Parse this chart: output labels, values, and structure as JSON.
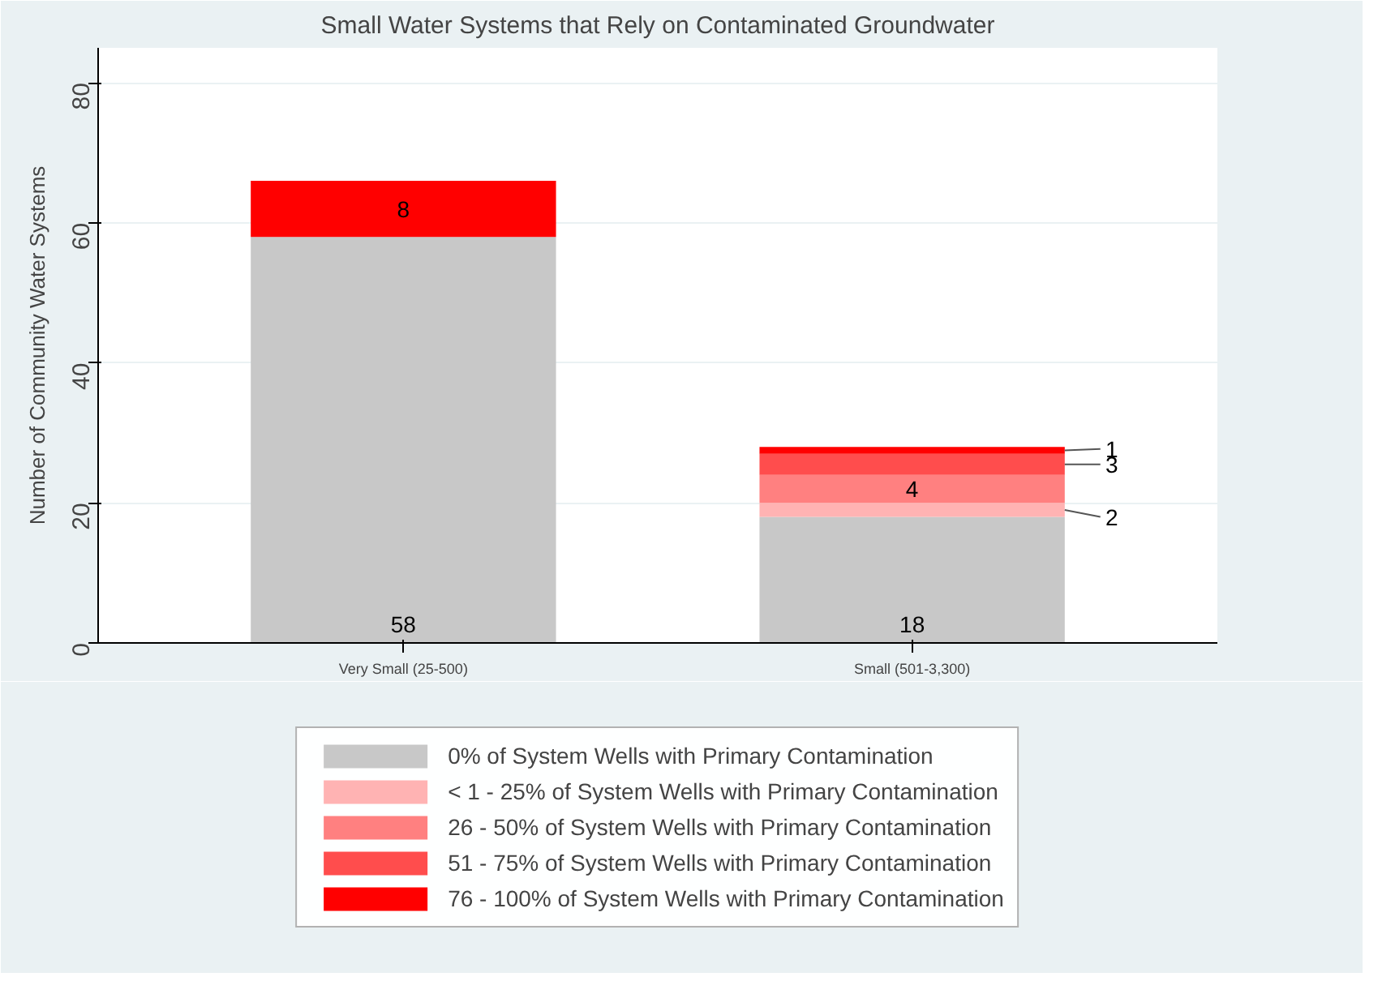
{
  "chart_data": {
    "type": "bar",
    "stacked": true,
    "title": "Small Water Systems that Rely on Contaminated Groundwater",
    "ylabel": "Number of Community Water Systems",
    "categories": [
      "Very Small (25-500)",
      "Small (501-3,300)"
    ],
    "series": [
      {
        "name": "0% of System Wells with Primary Contamination",
        "color": "#c8c8c8",
        "values": [
          58,
          18
        ],
        "value_labels": [
          "58",
          "18"
        ]
      },
      {
        "name": "< 1 - 25% of System Wells with Primary Contamination",
        "color": "#ffb3b3",
        "values": [
          0,
          2
        ],
        "value_labels": [
          null,
          "2"
        ]
      },
      {
        "name": "26 - 50% of System Wells with Primary Contamination",
        "color": "#ff8080",
        "values": [
          0,
          4
        ],
        "value_labels": [
          null,
          "4"
        ]
      },
      {
        "name": "51 - 75% of System Wells with Primary Contamination",
        "color": "#ff4d4d",
        "values": [
          0,
          3
        ],
        "value_labels": [
          null,
          "3"
        ]
      },
      {
        "name": "76 - 100% of System Wells with Primary Contamination",
        "color": "#ff0000",
        "values": [
          8,
          1
        ],
        "value_labels": [
          "8",
          "1"
        ]
      }
    ],
    "ylim": [
      0,
      85
    ],
    "yticks": [
      0,
      20,
      40,
      60,
      80
    ],
    "grid": "y",
    "legend": "bottom"
  }
}
